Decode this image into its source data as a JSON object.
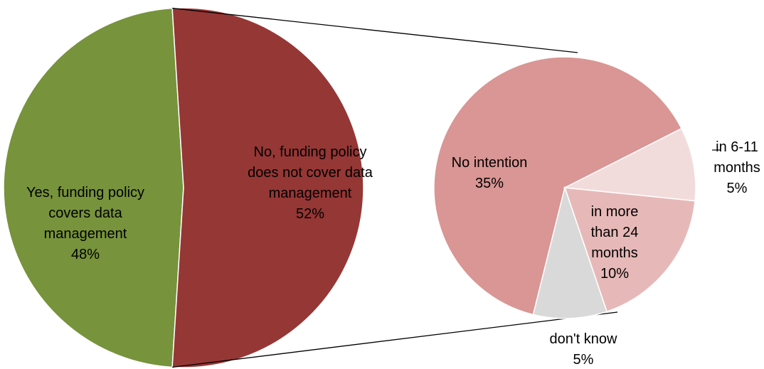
{
  "chart_data": {
    "type": "pie",
    "subtype": "pie-of-pie",
    "main": {
      "slices": [
        {
          "label_lines": [
            "Yes, funding policy",
            "covers data",
            "management"
          ],
          "pct_text": "48%",
          "value": 48,
          "color": "#77933c"
        },
        {
          "label_lines": [
            "No, funding policy",
            "does not cover data",
            "management"
          ],
          "pct_text": "52%",
          "value": 52,
          "color": "#953735"
        }
      ]
    },
    "secondary": {
      "expands": "No, funding policy does not cover data management",
      "slices": [
        {
          "label_lines": [
            "No intention"
          ],
          "pct_text": "35%",
          "value": 35,
          "color": "#d99694"
        },
        {
          "label_lines": [
            "in 6-11",
            "months"
          ],
          "pct_text": "5%",
          "value": 5,
          "color": "#f2dcdb"
        },
        {
          "label_lines": [
            "in more",
            "than 24",
            "months"
          ],
          "pct_text": "10%",
          "value": 10,
          "color": "#e6b9b8"
        },
        {
          "label_lines": [
            "don't know"
          ],
          "pct_text": "5%",
          "value": 5,
          "color": "#d9d9d9"
        }
      ]
    },
    "legend": false
  }
}
